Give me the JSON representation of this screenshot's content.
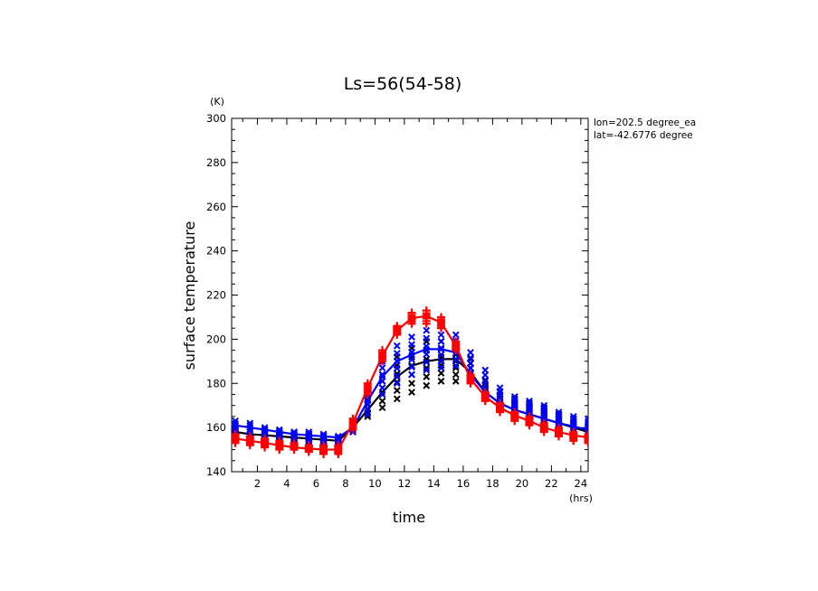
{
  "chart_data": {
    "type": "line",
    "title": "Ls=56(54-58)",
    "xlabel": "time",
    "ylabel": "surface temperature",
    "x_unit": "(hrs)",
    "y_unit": "(K)",
    "xlim": [
      0.25,
      24.5
    ],
    "ylim": [
      140,
      300
    ],
    "x_ticks": [
      2,
      4,
      6,
      8,
      10,
      12,
      14,
      16,
      18,
      20,
      22,
      24
    ],
    "y_ticks": [
      140,
      160,
      180,
      200,
      220,
      240,
      260,
      280,
      300
    ],
    "annotations": [
      "lon=202.5 degree_ea",
      "lat=-42.6776 degree"
    ],
    "x": [
      0.5,
      1.5,
      2.5,
      3.5,
      4.5,
      5.5,
      6.5,
      7.5,
      8.5,
      9.5,
      10.5,
      11.5,
      12.5,
      13.5,
      14.5,
      15.5,
      16.5,
      17.5,
      18.5,
      19.5,
      20.5,
      21.5,
      22.5,
      23.5,
      24.5
    ],
    "series": [
      {
        "color": "#000000",
        "line": [
          158,
          157,
          156.5,
          156,
          155.5,
          155,
          154.5,
          154,
          160,
          168,
          176,
          183,
          188,
          190,
          191,
          191,
          185,
          176,
          171,
          168,
          166,
          164,
          162,
          160,
          158
        ],
        "marker": "x",
        "scatter_spread": [
          [
            155,
            161
          ],
          [
            155,
            160
          ],
          [
            154,
            159
          ],
          [
            154,
            158
          ],
          [
            153,
            157
          ],
          [
            153,
            157
          ],
          [
            152,
            156
          ],
          [
            152,
            156
          ],
          [
            158,
            163
          ],
          [
            165,
            174
          ],
          [
            169,
            184
          ],
          [
            173,
            192
          ],
          [
            176,
            196
          ],
          [
            179,
            199
          ],
          [
            181,
            199
          ],
          [
            181,
            196
          ],
          [
            181,
            191
          ],
          [
            174,
            181
          ],
          [
            169,
            176
          ],
          [
            166,
            173
          ],
          [
            164,
            171
          ],
          [
            162,
            169
          ],
          [
            160,
            166
          ],
          [
            158,
            164
          ],
          [
            157,
            162
          ]
        ]
      },
      {
        "color": "#0000ff",
        "line": [
          161,
          160,
          159,
          158,
          157,
          156.5,
          156,
          155.5,
          160,
          172,
          183,
          190,
          193,
          195.5,
          195.5,
          194,
          184,
          176,
          171,
          168,
          166,
          164,
          162,
          160.5,
          159
        ],
        "marker": "x",
        "scatter_spread": [
          [
            157,
            163
          ],
          [
            157,
            162
          ],
          [
            156,
            160
          ],
          [
            155,
            159
          ],
          [
            155,
            158
          ],
          [
            154,
            158
          ],
          [
            153,
            157
          ],
          [
            153,
            156
          ],
          [
            158,
            163
          ],
          [
            166,
            178
          ],
          [
            175,
            190
          ],
          [
            180,
            197
          ],
          [
            184,
            201
          ],
          [
            186,
            204
          ],
          [
            187,
            202
          ],
          [
            188,
            202
          ],
          [
            182,
            194
          ],
          [
            175,
            186
          ],
          [
            170,
            178
          ],
          [
            167,
            174
          ],
          [
            165,
            172
          ],
          [
            163,
            170
          ],
          [
            160,
            167
          ],
          [
            159,
            165
          ],
          [
            158,
            164
          ]
        ]
      },
      {
        "color": "#ff0000",
        "line": [
          155,
          154,
          153,
          152,
          151,
          150.5,
          150,
          150,
          162,
          178,
          192.5,
          204,
          209.5,
          210.5,
          207.5,
          197,
          182,
          174,
          169,
          165.5,
          163,
          160,
          158,
          156.5,
          155.5
        ],
        "marker": "+",
        "scatter_spread": [
          [
            153,
            157
          ],
          [
            152,
            156
          ],
          [
            151,
            155
          ],
          [
            150,
            154
          ],
          [
            150,
            153
          ],
          [
            149,
            152
          ],
          [
            148,
            152
          ],
          [
            148,
            152
          ],
          [
            159,
            164
          ],
          [
            175,
            180
          ],
          [
            190,
            195
          ],
          [
            202,
            206
          ],
          [
            207,
            212
          ],
          [
            207,
            213
          ],
          [
            205,
            210
          ],
          [
            195,
            199
          ],
          [
            180,
            184
          ],
          [
            172,
            176
          ],
          [
            167,
            171
          ],
          [
            163,
            167
          ],
          [
            161,
            165
          ],
          [
            158,
            162
          ],
          [
            156,
            160
          ],
          [
            154,
            158
          ],
          [
            153,
            157
          ]
        ]
      }
    ]
  }
}
